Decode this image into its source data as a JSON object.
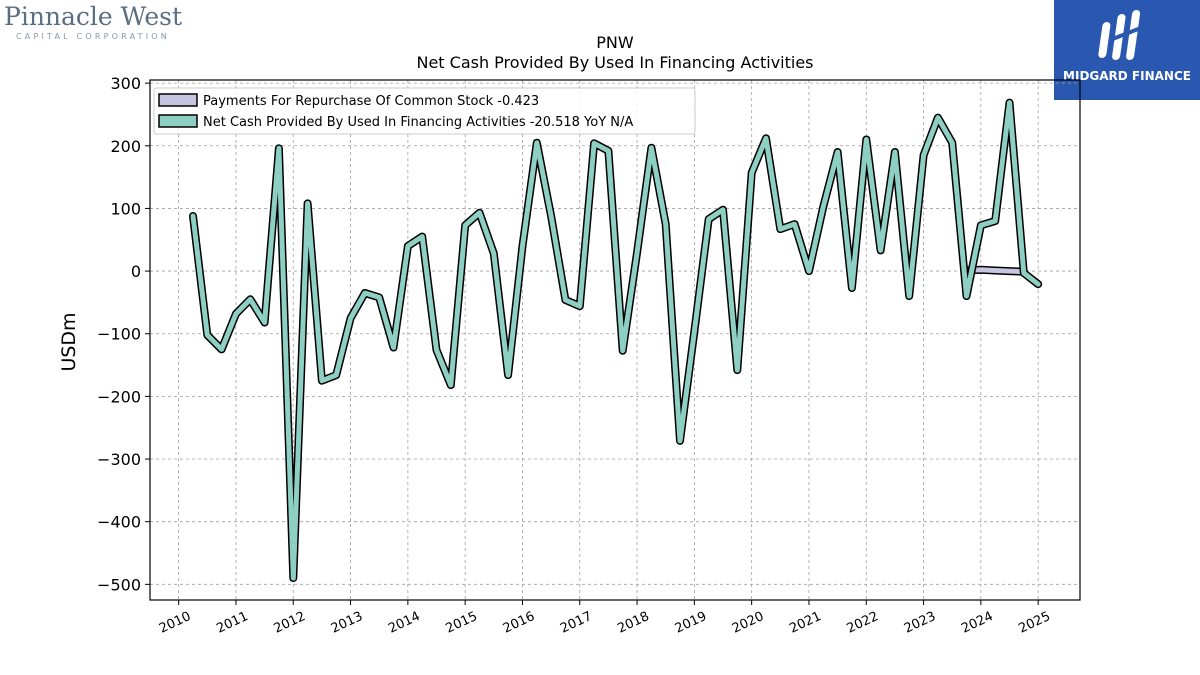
{
  "logos": {
    "left_name": "Pinnacle West",
    "left_sub": "CAPITAL CORPORATION",
    "right_name": "MIDGARD FINANCE"
  },
  "chart_data": {
    "type": "line",
    "title": "PNW",
    "subtitle": "Net Cash Provided By Used In Financing Activities",
    "ylabel": "USDm",
    "xlabel": "",
    "ylim": [
      -525,
      305
    ],
    "xlim": [
      2009.5,
      2025.73
    ],
    "yticks": [
      300,
      200,
      100,
      0,
      -100,
      -200,
      -300,
      -400,
      -500
    ],
    "ytick_labels": [
      "300",
      "200",
      "100",
      "0",
      "−100",
      "−200",
      "−300",
      "−400",
      "−500"
    ],
    "xticks": [
      2010,
      2011,
      2012,
      2013,
      2014,
      2015,
      2016,
      2017,
      2018,
      2019,
      2020,
      2021,
      2022,
      2023,
      2024,
      2025
    ],
    "xtick_labels": [
      "2010",
      "2011",
      "2012",
      "2013",
      "2014",
      "2015",
      "2016",
      "2017",
      "2018",
      "2019",
      "2020",
      "2021",
      "2022",
      "2023",
      "2024",
      "2025"
    ],
    "grid": true,
    "legend_placement": "top-left",
    "legend": [
      {
        "label": "Payments For Repurchase Of Common Stock  -0.423",
        "color": "#c5c5e0"
      },
      {
        "label": "Net Cash Provided By Used In Financing Activities  -20.518 YoY N/A",
        "color": "#8ecfc3"
      }
    ],
    "series": [
      {
        "name": "Payments For Repurchase Of Common Stock",
        "color": "#c5c5e0",
        "x": [
          2023.75,
          2024.0,
          2024.25,
          2024.5,
          2024.75
        ],
        "values": [
          1,
          2,
          1,
          0,
          -1
        ]
      },
      {
        "name": "Net Cash Provided By Used In Financing Activities",
        "color": "#8ecfc3",
        "x": [
          2010.25,
          2010.5,
          2010.75,
          2011.0,
          2011.25,
          2011.5,
          2011.75,
          2012.0,
          2012.25,
          2012.5,
          2012.75,
          2013.0,
          2013.25,
          2013.5,
          2013.75,
          2014.0,
          2014.25,
          2014.5,
          2014.75,
          2015.0,
          2015.25,
          2015.5,
          2015.75,
          2016.0,
          2016.25,
          2016.5,
          2016.75,
          2017.0,
          2017.25,
          2017.5,
          2017.75,
          2018.0,
          2018.25,
          2018.5,
          2018.75,
          2019.0,
          2019.25,
          2019.5,
          2019.75,
          2020.0,
          2020.25,
          2020.5,
          2020.75,
          2021.0,
          2021.25,
          2021.5,
          2021.75,
          2022.0,
          2022.25,
          2022.5,
          2022.75,
          2023.0,
          2023.25,
          2023.5,
          2023.75,
          2024.0,
          2024.25,
          2024.5,
          2024.75,
          2025.0
        ],
        "values": [
          88,
          -102,
          -125,
          -68,
          -45,
          -82,
          196,
          -490,
          108,
          -175,
          -166,
          -75,
          -35,
          -42,
          -122,
          40,
          55,
          -126,
          -182,
          73,
          93,
          28,
          -166,
          40,
          205,
          88,
          -46,
          -56,
          204,
          192,
          -127,
          30,
          197,
          75,
          -271,
          -96,
          83,
          98,
          -158,
          157,
          212,
          67,
          75,
          0,
          103,
          190,
          -27,
          210,
          33,
          190,
          -40,
          185,
          245,
          205,
          -40,
          73,
          80,
          269,
          -3,
          -21
        ]
      }
    ]
  }
}
